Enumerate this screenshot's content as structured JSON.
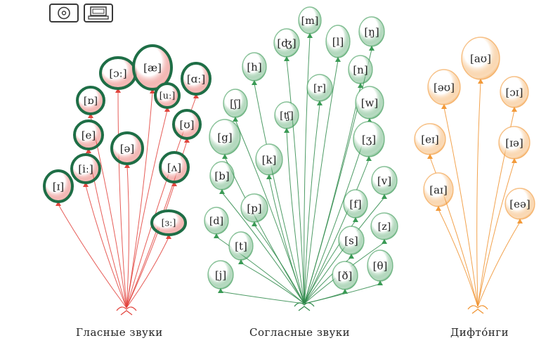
{
  "toolbar": {
    "icons": [
      {
        "name": "disc-icon"
      },
      {
        "name": "computer-icon"
      }
    ]
  },
  "groups": [
    {
      "id": "vowels",
      "label": "Гласные звуки",
      "string_color": "#e2403a",
      "fill_color": "#e0453d",
      "balloons": [
        {
          "symbol": "[ɔː]",
          "highlighted": true
        },
        {
          "symbol": "[æ]",
          "highlighted": true
        },
        {
          "symbol": "[ɑː]",
          "highlighted": true
        },
        {
          "symbol": "[ɒ]",
          "highlighted": true
        },
        {
          "symbol": "[uː]",
          "highlighted": true
        },
        {
          "symbol": "[ʊ]",
          "highlighted": true
        },
        {
          "symbol": "[e]",
          "highlighted": true
        },
        {
          "symbol": "[ə]",
          "highlighted": true
        },
        {
          "symbol": "[iː]",
          "highlighted": true
        },
        {
          "symbol": "[ʌ]",
          "highlighted": true
        },
        {
          "symbol": "[ɪ]",
          "highlighted": true
        },
        {
          "symbol": "[ɜː]",
          "highlighted": true
        }
      ]
    },
    {
      "id": "consonants",
      "label": "Согласные звуки",
      "string_color": "#2e8a4a",
      "fill_color": "#3a9a55",
      "balloons": [
        {
          "symbol": "[m]"
        },
        {
          "symbol": "[ʤ]"
        },
        {
          "symbol": "[l]"
        },
        {
          "symbol": "[ŋ]"
        },
        {
          "symbol": "[h]"
        },
        {
          "symbol": "[n]"
        },
        {
          "symbol": "[r]"
        },
        {
          "symbol": "[ʃ]"
        },
        {
          "symbol": "[ʧ]"
        },
        {
          "symbol": "[w]"
        },
        {
          "symbol": "[g]"
        },
        {
          "symbol": "[ʒ]"
        },
        {
          "symbol": "[k]"
        },
        {
          "symbol": "[b]"
        },
        {
          "symbol": "[v]"
        },
        {
          "symbol": "[p]"
        },
        {
          "symbol": "[f]"
        },
        {
          "symbol": "[d]"
        },
        {
          "symbol": "[z]"
        },
        {
          "symbol": "[t]"
        },
        {
          "symbol": "[s]"
        },
        {
          "symbol": "[θ]"
        },
        {
          "symbol": "[j]"
        },
        {
          "symbol": "[ð]"
        }
      ]
    },
    {
      "id": "diphthongs",
      "label": "Дифто́нги",
      "string_color": "#f0922e",
      "fill_color": "#f29a3a",
      "balloons": [
        {
          "symbol": "[aʊ]"
        },
        {
          "symbol": "[əʊ]"
        },
        {
          "symbol": "[ɔɪ]"
        },
        {
          "symbol": "[eɪ]"
        },
        {
          "symbol": "[ɪə]"
        },
        {
          "symbol": "[aɪ]"
        },
        {
          "symbol": "[eə]"
        }
      ]
    }
  ],
  "highlight_color": "#1e6e46"
}
